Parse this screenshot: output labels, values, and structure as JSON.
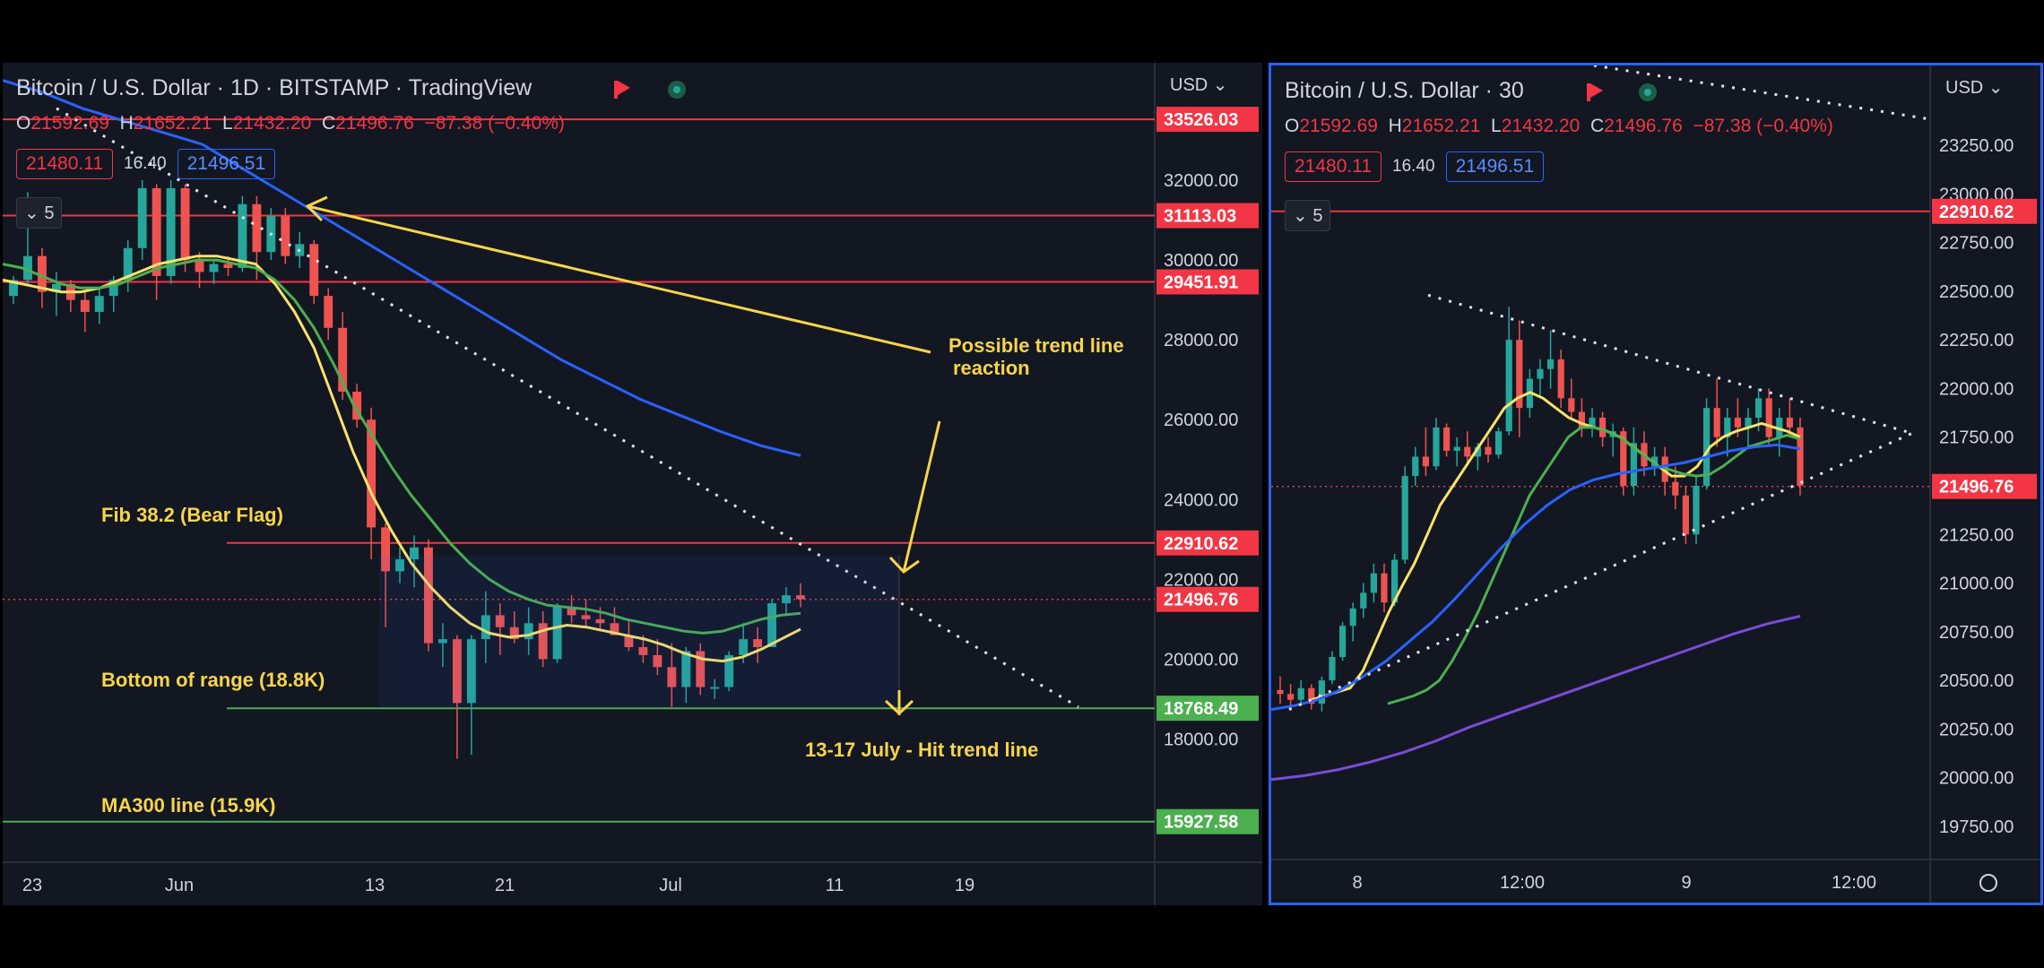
{
  "colors": {
    "background": "#131722",
    "grid": "#1e222d",
    "up": "#26a69a",
    "down": "#ef5350",
    "hline_red": "#f23645",
    "hline_green": "#4caf50",
    "ma_yellow": "#f7e36b",
    "ma_green": "#4caf50",
    "ma_blue": "#2962ff",
    "ma_purple": "#7b4cd6",
    "annotation": "#f7d54a",
    "axis_text": "#d1d4dc"
  },
  "left": {
    "header": {
      "symbol": "Bitcoin / U.S. Dollar · 1D · BITSTAMP · TradingView",
      "open_label": "O",
      "open": "21592.69",
      "high_label": "H",
      "high": "21652.21",
      "low_label": "L",
      "low": "21432.20",
      "close_label": "C",
      "close": "21496.76",
      "change": "−87.38 (−0.40%)",
      "bid": "21480.11",
      "spread": "16.40",
      "ask": "21496.51",
      "indicators_count": "5",
      "currency": "USD"
    },
    "chart_data": {
      "type": "candlestick",
      "timeframe": "1D",
      "ylim": [
        15000,
        34000
      ],
      "y_ticks": [
        "32000.00",
        "30000.00",
        "28000.00",
        "26000.00",
        "24000.00",
        "22000.00",
        "20000.00",
        "18000.00"
      ],
      "x_ticks": [
        "23",
        "Jun",
        "13",
        "21",
        "Jul",
        "11",
        "19"
      ],
      "price_levels": [
        {
          "value": 33526.03,
          "label": "33526.03",
          "color": "red"
        },
        {
          "value": 31113.03,
          "label": "31113.03",
          "color": "red"
        },
        {
          "value": 29451.91,
          "label": "29451.91",
          "color": "red"
        },
        {
          "value": 22910.62,
          "label": "22910.62",
          "color": "red"
        },
        {
          "value": 21496.76,
          "label": "21496.76",
          "color": "red",
          "dotted": true
        },
        {
          "value": 18768.49,
          "label": "18768.49",
          "color": "green"
        },
        {
          "value": 15927.58,
          "label": "15927.58",
          "color": "green"
        }
      ],
      "candles": [
        [
          29100,
          29600,
          28900,
          29500
        ],
        [
          29500,
          31700,
          29400,
          30100
        ],
        [
          30100,
          30300,
          28800,
          29200
        ],
        [
          29200,
          29700,
          28600,
          29400
        ],
        [
          29400,
          29500,
          28700,
          29000
        ],
        [
          29000,
          29200,
          28200,
          28700
        ],
        [
          28700,
          29300,
          28400,
          29100
        ],
        [
          29100,
          29600,
          28700,
          29500
        ],
        [
          29500,
          30500,
          29200,
          30300
        ],
        [
          30300,
          32000,
          30000,
          31800
        ],
        [
          31800,
          31900,
          29000,
          29600
        ],
        [
          29600,
          32000,
          29400,
          31800
        ],
        [
          31800,
          31900,
          29700,
          30000
        ],
        [
          30000,
          30200,
          29300,
          29700
        ],
        [
          29700,
          30000,
          29400,
          29900
        ],
        [
          29900,
          30100,
          29600,
          29800
        ],
        [
          29800,
          31600,
          29700,
          31400
        ],
        [
          31400,
          31600,
          29500,
          30200
        ],
        [
          30200,
          31300,
          30000,
          31100
        ],
        [
          31100,
          31300,
          29900,
          30100
        ],
        [
          30100,
          30700,
          29800,
          30400
        ],
        [
          30400,
          30500,
          28900,
          29100
        ],
        [
          29100,
          29300,
          28000,
          28300
        ],
        [
          28300,
          28700,
          26500,
          26700
        ],
        [
          26700,
          26900,
          25800,
          26000
        ],
        [
          26000,
          26300,
          22500,
          23300
        ],
        [
          23300,
          23400,
          20800,
          22200
        ],
        [
          22200,
          22800,
          21900,
          22500
        ],
        [
          22500,
          23100,
          21800,
          22800
        ],
        [
          22800,
          23000,
          20200,
          20400
        ],
        [
          20400,
          20900,
          19800,
          20500
        ],
        [
          20500,
          20600,
          17500,
          18900
        ],
        [
          18900,
          20600,
          17600,
          20500
        ],
        [
          20500,
          21700,
          19900,
          21100
        ],
        [
          21100,
          21400,
          20100,
          20800
        ],
        [
          20800,
          21200,
          20400,
          20500
        ],
        [
          20500,
          21300,
          20100,
          20900
        ],
        [
          20900,
          21200,
          19800,
          20000
        ],
        [
          20000,
          21400,
          19900,
          21300
        ],
        [
          21300,
          21600,
          20900,
          21100
        ],
        [
          21100,
          21500,
          20800,
          21000
        ],
        [
          21000,
          21300,
          20700,
          20900
        ],
        [
          20900,
          21300,
          20600,
          20600
        ],
        [
          20600,
          21000,
          20200,
          20300
        ],
        [
          20300,
          20600,
          19900,
          20100
        ],
        [
          20100,
          20500,
          19600,
          19800
        ],
        [
          19800,
          20400,
          18800,
          19300
        ],
        [
          19300,
          20300,
          18900,
          20200
        ],
        [
          20200,
          20400,
          19100,
          19300
        ],
        [
          19300,
          19500,
          19000,
          19300
        ],
        [
          19300,
          20200,
          19200,
          20100
        ],
        [
          20100,
          20900,
          19900,
          20500
        ],
        [
          20500,
          20800,
          19900,
          20300
        ],
        [
          20300,
          21500,
          20300,
          21400
        ],
        [
          21400,
          21800,
          21100,
          21600
        ],
        [
          21600,
          21900,
          21300,
          21500
        ]
      ],
      "ma_fast": [
        29500,
        29400,
        29300,
        29200,
        29200,
        29300,
        29500,
        29700,
        29900,
        30000,
        30100,
        30100,
        30000,
        29900,
        29400,
        28700,
        27800,
        26500,
        25200,
        24100,
        23200,
        22400,
        21800,
        21300,
        20900,
        20650,
        20550,
        20600,
        20750,
        20850,
        20800,
        20700,
        20600,
        20500,
        20350,
        20150,
        20000,
        19950,
        20050,
        20250,
        20500,
        20750
      ],
      "ma_mid": [
        29900,
        29800,
        29600,
        29400,
        29300,
        29300,
        29400,
        29600,
        29800,
        29900,
        30000,
        30000,
        29900,
        29800,
        29500,
        29000,
        28300,
        27400,
        26400,
        25600,
        24800,
        24100,
        23500,
        22900,
        22400,
        22000,
        21700,
        21500,
        21350,
        21300,
        21250,
        21150,
        21000,
        20900,
        20800,
        20700,
        20650,
        20700,
        20850,
        21000,
        21100,
        21150
      ],
      "ma_slow": [
        34500,
        34200,
        33800,
        33500,
        33200,
        32900,
        32300,
        31700,
        31100,
        30500,
        29900,
        29300,
        28700,
        28100,
        27500,
        27000,
        26500,
        26100,
        25700,
        25350,
        25100
      ],
      "trend_line": {
        "from": [
          "May 23",
          33800
        ],
        "to": [
          "Jul 21",
          18800
        ]
      }
    },
    "annotations": {
      "trend_reaction": "Possible trend line reaction",
      "fib": "Fib 38.2 (Bear Flag)",
      "bottom": "Bottom of range (18.8K)",
      "hit": "13-17 July - Hit trend line",
      "ma300": "MA300 line (15.9K)"
    }
  },
  "right": {
    "header": {
      "symbol": "Bitcoin / U.S. Dollar · 30",
      "open_label": "O",
      "open": "21592.69",
      "high_label": "H",
      "high": "21652.21",
      "low_label": "L",
      "low": "21432.20",
      "close_label": "C",
      "close": "21496.76",
      "change": "−87.38 (−0.40%)",
      "bid": "21480.11",
      "spread": "16.40",
      "ask": "21496.51",
      "indicators_count": "5",
      "currency": "USD"
    },
    "chart_data": {
      "type": "candlestick",
      "timeframe": "30",
      "ylim": [
        19625,
        23375
      ],
      "y_ticks": [
        "23250.00",
        "23000.00",
        "22750.00",
        "22500.00",
        "22250.00",
        "22000.00",
        "21750.00",
        "21500.00",
        "21250.00",
        "21000.00",
        "20750.00",
        "20500.00",
        "20250.00",
        "20000.00",
        "19750.00"
      ],
      "x_ticks": [
        "8",
        "12:00",
        "9",
        "12:00"
      ],
      "price_levels": [
        {
          "value": 22910.62,
          "label": "22910.62",
          "color": "red"
        },
        {
          "value": 21496.76,
          "label": "21496.76",
          "color": "red",
          "dotted": true
        }
      ],
      "candles": [
        [
          20450,
          20520,
          20380,
          20430
        ],
        [
          20430,
          20480,
          20360,
          20400
        ],
        [
          20400,
          20500,
          20370,
          20460
        ],
        [
          20460,
          20480,
          20350,
          20380
        ],
        [
          20380,
          20520,
          20340,
          20500
        ],
        [
          20500,
          20650,
          20480,
          20620
        ],
        [
          20620,
          20800,
          20600,
          20780
        ],
        [
          20780,
          20900,
          20700,
          20870
        ],
        [
          20870,
          21000,
          20820,
          20950
        ],
        [
          20950,
          21100,
          20900,
          21050
        ],
        [
          21050,
          21100,
          20850,
          20900
        ],
        [
          20900,
          21150,
          20880,
          21120
        ],
        [
          21120,
          21600,
          21100,
          21550
        ],
        [
          21550,
          21700,
          21500,
          21650
        ],
        [
          21650,
          21800,
          21550,
          21600
        ],
        [
          21600,
          21850,
          21580,
          21800
        ],
        [
          21800,
          21820,
          21650,
          21680
        ],
        [
          21680,
          21750,
          21600,
          21700
        ],
        [
          21700,
          21780,
          21620,
          21650
        ],
        [
          21650,
          21720,
          21580,
          21700
        ],
        [
          21700,
          21750,
          21620,
          21660
        ],
        [
          21660,
          21800,
          21640,
          21780
        ],
        [
          21780,
          22420,
          21760,
          22250
        ],
        [
          22250,
          22350,
          21750,
          21900
        ],
        [
          21900,
          22100,
          21850,
          22050
        ],
        [
          22050,
          22150,
          21950,
          22100
        ],
        [
          22100,
          22300,
          22000,
          22150
        ],
        [
          22150,
          22200,
          21900,
          21950
        ],
        [
          21950,
          22050,
          21850,
          21880
        ],
        [
          21880,
          21950,
          21750,
          21800
        ],
        [
          21800,
          21900,
          21750,
          21850
        ],
        [
          21850,
          21880,
          21700,
          21750
        ],
        [
          21750,
          21820,
          21650,
          21780
        ],
        [
          21780,
          21800,
          21450,
          21500
        ],
        [
          21500,
          21800,
          21450,
          21720
        ],
        [
          21720,
          21780,
          21550,
          21600
        ],
        [
          21600,
          21700,
          21550,
          21650
        ],
        [
          21650,
          21700,
          21450,
          21520
        ],
        [
          21520,
          21600,
          21380,
          21450
        ],
        [
          21450,
          21500,
          21200,
          21250
        ],
        [
          21250,
          21550,
          21200,
          21500
        ],
        [
          21500,
          21950,
          21480,
          21900
        ],
        [
          21900,
          22050,
          21700,
          21750
        ],
        [
          21750,
          21900,
          21650,
          21850
        ],
        [
          21850,
          21950,
          21750,
          21800
        ],
        [
          21800,
          21900,
          21700,
          21850
        ],
        [
          21850,
          22000,
          21780,
          21950
        ],
        [
          21950,
          22000,
          21700,
          21750
        ],
        [
          21750,
          21900,
          21650,
          21850
        ],
        [
          21850,
          21950,
          21750,
          21800
        ],
        [
          21800,
          21850,
          21450,
          21500
        ]
      ],
      "ma_yellow": [
        20400,
        20420,
        20440,
        20460,
        20550,
        20700,
        20850,
        20980,
        21100,
        21250,
        21400,
        21500,
        21600,
        21700,
        21800,
        21900,
        21950,
        21980,
        21950,
        21900,
        21850,
        21820,
        21800,
        21780,
        21750,
        21700,
        21650,
        21600,
        21550,
        21550,
        21600,
        21700,
        21750,
        21780,
        21800,
        21820,
        21800,
        21780,
        21750
      ],
      "ma_green": [
        20380,
        20400,
        20420,
        20450,
        20500,
        20600,
        20720,
        20850,
        21000,
        21150,
        21300,
        21450,
        21550,
        21650,
        21750,
        21800,
        21800,
        21780,
        21750,
        21700,
        21650,
        21600,
        21580,
        21560,
        21550,
        21560,
        21600,
        21650,
        21700,
        21720,
        21740,
        21760,
        21740
      ],
      "ma_blue": [
        20350,
        20370,
        20400,
        20450,
        20520,
        20600,
        20700,
        20800,
        20920,
        21050,
        21180,
        21300,
        21400,
        21480,
        21530,
        21560,
        21580,
        21600,
        21620,
        21650,
        21680,
        21700,
        21710,
        21690
      ],
      "ma_purple": [
        19990,
        20010,
        20040,
        20080,
        20130,
        20190,
        20260,
        20320,
        20380,
        20440,
        20500,
        20560,
        20620,
        20680,
        20740,
        20790,
        20830
      ],
      "triangle_upper": {
        "from": [
          "Jul 8 ~09:00",
          22480
        ],
        "to": [
          "Jul 9 ~11:00",
          21770
        ]
      },
      "triangle_lower": {
        "from": [
          "Jul 7 ~22:00",
          20350
        ],
        "to": [
          "Jul 9 ~11:00",
          21770
        ]
      }
    }
  }
}
